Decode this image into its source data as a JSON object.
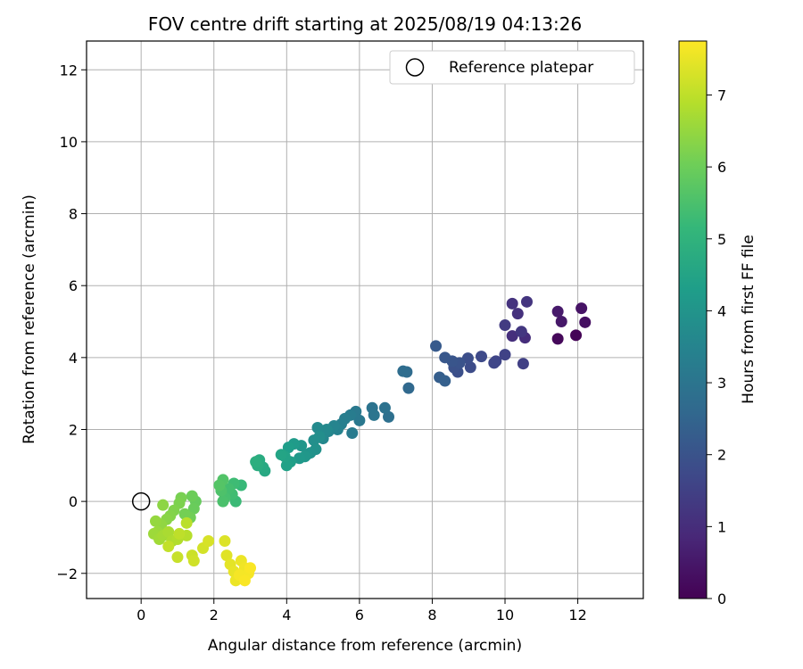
{
  "chart_data": {
    "type": "scatter",
    "title": "FOV centre drift starting at 2025/08/19 04:13:26",
    "xlabel": "Angular distance from reference (arcmin)",
    "ylabel": "Rotation from reference (arcmin)",
    "xlim": [
      -1.5,
      13.8
    ],
    "ylim": [
      -2.7,
      12.8
    ],
    "xticks": [
      0,
      2,
      4,
      6,
      8,
      10,
      12
    ],
    "yticks": [
      -2,
      0,
      2,
      4,
      6,
      8,
      10,
      12
    ],
    "grid": true,
    "legend": {
      "position": "top-right",
      "entries": [
        "Reference platepar"
      ]
    },
    "reference_point": {
      "x": 0,
      "y": 0
    },
    "colorbar": {
      "label": "Hours from first FF file",
      "colormap": "viridis",
      "range": [
        0,
        7.75
      ],
      "ticks": [
        0,
        1,
        2,
        3,
        4,
        5,
        6,
        7
      ]
    },
    "colormap_stops": [
      "#440154",
      "#482878",
      "#3e4989",
      "#31688e",
      "#26828e",
      "#1f9e89",
      "#35b779",
      "#6ece58",
      "#b5de2b",
      "#fde725"
    ],
    "series": [
      {
        "points": [
          [
            11.95,
            4.62,
            0.05
          ],
          [
            11.45,
            4.52,
            0.15
          ],
          [
            12.2,
            4.98,
            0.3
          ],
          [
            12.1,
            5.37,
            0.4
          ],
          [
            11.55,
            5.0,
            0.5
          ],
          [
            11.45,
            5.28,
            0.55
          ],
          [
            10.55,
            4.55,
            1.0
          ],
          [
            10.2,
            4.6,
            1.05
          ],
          [
            10.35,
            5.22,
            1.1
          ],
          [
            10.2,
            5.5,
            1.15
          ],
          [
            10.6,
            5.55,
            1.2
          ],
          [
            10.45,
            4.72,
            1.25
          ],
          [
            10.0,
            4.9,
            1.35
          ],
          [
            10.5,
            3.83,
            1.5
          ],
          [
            10.0,
            4.08,
            1.55
          ],
          [
            9.75,
            3.9,
            1.6
          ],
          [
            9.7,
            3.85,
            1.65
          ],
          [
            9.35,
            4.03,
            1.75
          ],
          [
            9.05,
            3.73,
            1.8
          ],
          [
            8.98,
            3.98,
            1.85
          ],
          [
            8.7,
            3.6,
            1.9
          ],
          [
            8.6,
            3.72,
            1.95
          ],
          [
            8.75,
            3.85,
            2.0
          ],
          [
            8.55,
            3.9,
            2.05
          ],
          [
            8.35,
            4.0,
            2.1
          ],
          [
            8.1,
            4.32,
            2.2
          ],
          [
            8.2,
            3.45,
            2.3
          ],
          [
            8.35,
            3.35,
            2.35
          ],
          [
            7.35,
            3.15,
            2.6
          ],
          [
            7.3,
            3.6,
            2.7
          ],
          [
            7.2,
            3.62,
            2.75
          ],
          [
            6.8,
            2.35,
            2.85
          ],
          [
            6.7,
            2.6,
            2.9
          ],
          [
            6.35,
            2.6,
            2.95
          ],
          [
            6.4,
            2.4,
            3.0
          ],
          [
            6.0,
            2.25,
            3.1
          ],
          [
            5.9,
            2.5,
            3.15
          ],
          [
            5.8,
            1.9,
            3.2
          ],
          [
            5.75,
            2.4,
            3.25
          ],
          [
            5.6,
            2.3,
            3.3
          ],
          [
            5.5,
            2.15,
            3.35
          ],
          [
            5.4,
            2.0,
            3.45
          ],
          [
            5.3,
            2.1,
            3.5
          ],
          [
            5.15,
            1.95,
            3.55
          ],
          [
            5.0,
            1.75,
            3.6
          ],
          [
            5.1,
            2.0,
            3.65
          ],
          [
            4.85,
            2.05,
            3.7
          ],
          [
            4.9,
            1.8,
            3.8
          ],
          [
            4.75,
            1.7,
            3.85
          ],
          [
            4.8,
            1.45,
            3.9
          ],
          [
            4.65,
            1.35,
            3.95
          ],
          [
            4.55,
            1.3,
            4.0
          ],
          [
            4.4,
            1.55,
            4.05
          ],
          [
            4.5,
            1.25,
            4.1
          ],
          [
            4.35,
            1.2,
            4.15
          ],
          [
            4.2,
            1.6,
            4.2
          ],
          [
            4.05,
            1.5,
            4.3
          ],
          [
            4.1,
            1.1,
            4.35
          ],
          [
            4.0,
            1.0,
            4.4
          ],
          [
            3.95,
            1.25,
            4.45
          ],
          [
            3.85,
            1.3,
            4.5
          ],
          [
            3.4,
            0.85,
            4.65
          ],
          [
            3.35,
            0.95,
            4.7
          ],
          [
            3.25,
            1.15,
            4.75
          ],
          [
            3.2,
            1.0,
            4.8
          ],
          [
            3.15,
            1.1,
            4.85
          ],
          [
            2.75,
            0.45,
            5.2
          ],
          [
            2.6,
            0.0,
            5.25
          ],
          [
            2.55,
            0.5,
            5.3
          ],
          [
            2.5,
            0.2,
            5.35
          ],
          [
            2.4,
            0.35,
            5.4
          ],
          [
            2.3,
            0.1,
            5.45
          ],
          [
            2.25,
            0.0,
            5.5
          ],
          [
            2.2,
            0.3,
            5.55
          ],
          [
            2.25,
            0.6,
            5.6
          ],
          [
            2.15,
            0.45,
            5.65
          ],
          [
            1.5,
            0.0,
            5.9
          ],
          [
            1.45,
            -0.2,
            5.95
          ],
          [
            1.4,
            0.15,
            6.0
          ],
          [
            1.35,
            -0.45,
            6.05
          ],
          [
            1.2,
            -0.35,
            6.1
          ],
          [
            1.1,
            0.1,
            6.15
          ],
          [
            1.05,
            -0.05,
            6.2
          ],
          [
            0.9,
            -0.25,
            6.25
          ],
          [
            0.8,
            -0.4,
            6.3
          ],
          [
            0.7,
            -0.5,
            6.35
          ],
          [
            0.6,
            -0.1,
            6.4
          ],
          [
            0.55,
            -0.65,
            6.45
          ],
          [
            0.4,
            -0.55,
            6.5
          ],
          [
            0.45,
            -0.85,
            6.55
          ],
          [
            0.35,
            -0.9,
            6.6
          ],
          [
            0.5,
            -1.05,
            6.65
          ],
          [
            0.6,
            -0.95,
            6.7
          ],
          [
            0.75,
            -0.85,
            6.75
          ],
          [
            0.85,
            -1.1,
            6.8
          ],
          [
            1.0,
            -1.05,
            6.85
          ],
          [
            1.25,
            -0.95,
            6.9
          ],
          [
            1.25,
            -0.6,
            6.95
          ],
          [
            1.05,
            -0.9,
            7.0
          ],
          [
            0.75,
            -1.25,
            7.05
          ],
          [
            1.0,
            -1.55,
            7.1
          ],
          [
            1.4,
            -1.5,
            7.15
          ],
          [
            1.45,
            -1.65,
            7.2
          ],
          [
            1.7,
            -1.3,
            7.25
          ],
          [
            1.85,
            -1.1,
            7.3
          ],
          [
            2.3,
            -1.1,
            7.35
          ],
          [
            2.35,
            -1.5,
            7.4
          ],
          [
            2.45,
            -1.75,
            7.45
          ],
          [
            2.55,
            -1.95,
            7.5
          ],
          [
            2.6,
            -2.2,
            7.55
          ],
          [
            2.75,
            -1.65,
            7.55
          ],
          [
            2.85,
            -1.85,
            7.6
          ],
          [
            2.95,
            -2.0,
            7.65
          ],
          [
            2.7,
            -2.05,
            7.65
          ],
          [
            2.85,
            -2.2,
            7.7
          ],
          [
            3.0,
            -1.85,
            7.7
          ]
        ]
      }
    ]
  }
}
